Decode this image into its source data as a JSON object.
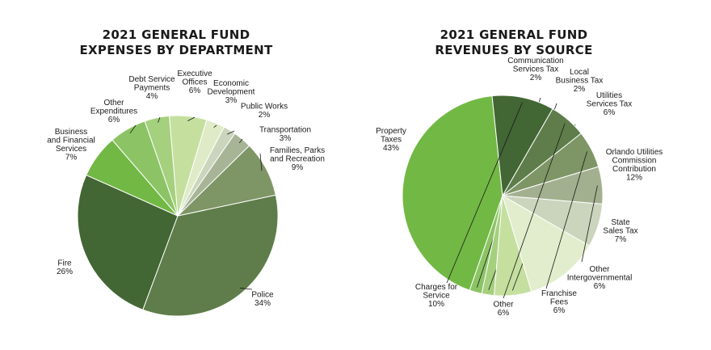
{
  "chart_data": [
    {
      "type": "pie",
      "title": "2021 GENERAL FUND\nEXPENSES BY DEPARTMENT",
      "unit": "%",
      "slices": [
        {
          "label": "Police",
          "value": 34,
          "color": "#5e7d4a"
        },
        {
          "label": "Fire",
          "value": 26,
          "color": "#426634"
        },
        {
          "label": "Business\nand Financial\nServices",
          "value": 7,
          "color": "#72b844"
        },
        {
          "label": "Other\nExpenditures",
          "value": 6,
          "color": "#8cc465"
        },
        {
          "label": "Debt Service\nPayments",
          "value": 4,
          "color": "#a5d07e"
        },
        {
          "label": "Executive\nOffices",
          "value": 6,
          "color": "#c5df9f"
        },
        {
          "label": "Economic\nDevelopment",
          "value": 3,
          "color": "#dfebc7"
        },
        {
          "label": "Public Works",
          "value": 2,
          "color": "#cbd5bd"
        },
        {
          "label": "Transportation",
          "value": 3,
          "color": "#a7b496"
        },
        {
          "label": "Families, Parks\nand Recreation",
          "value": 9,
          "color": "#7e9566"
        }
      ]
    },
    {
      "type": "pie",
      "title": "2021 GENERAL FUND\nREVENUES BY SOURCE",
      "unit": "%",
      "slices": [
        {
          "label": "Property\nTaxes",
          "value": 43,
          "color": "#72b844"
        },
        {
          "label": "Communication\nServices Tax",
          "value": 2,
          "color": "#8cc465"
        },
        {
          "label": "Local\nBusiness Tax",
          "value": 2,
          "color": "#a5d07e"
        },
        {
          "label": "Utilities\nServices Tax",
          "value": 6,
          "color": "#c5df9f"
        },
        {
          "label": "Orlando Utilities\nCommission\nContribution",
          "value": 12,
          "color": "#e1edcc"
        },
        {
          "label": "State\nSales Tax",
          "value": 7,
          "color": "#cbd5bd"
        },
        {
          "label": "Other\nIntergovernmental",
          "value": 6,
          "color": "#a3b08f"
        },
        {
          "label": "Franchise\nFees",
          "value": 6,
          "color": "#7e9566"
        },
        {
          "label": "Other",
          "value": 6,
          "color": "#5e7d4a"
        },
        {
          "label": "Charges for\nService",
          "value": 10,
          "color": "#426634"
        }
      ]
    }
  ]
}
